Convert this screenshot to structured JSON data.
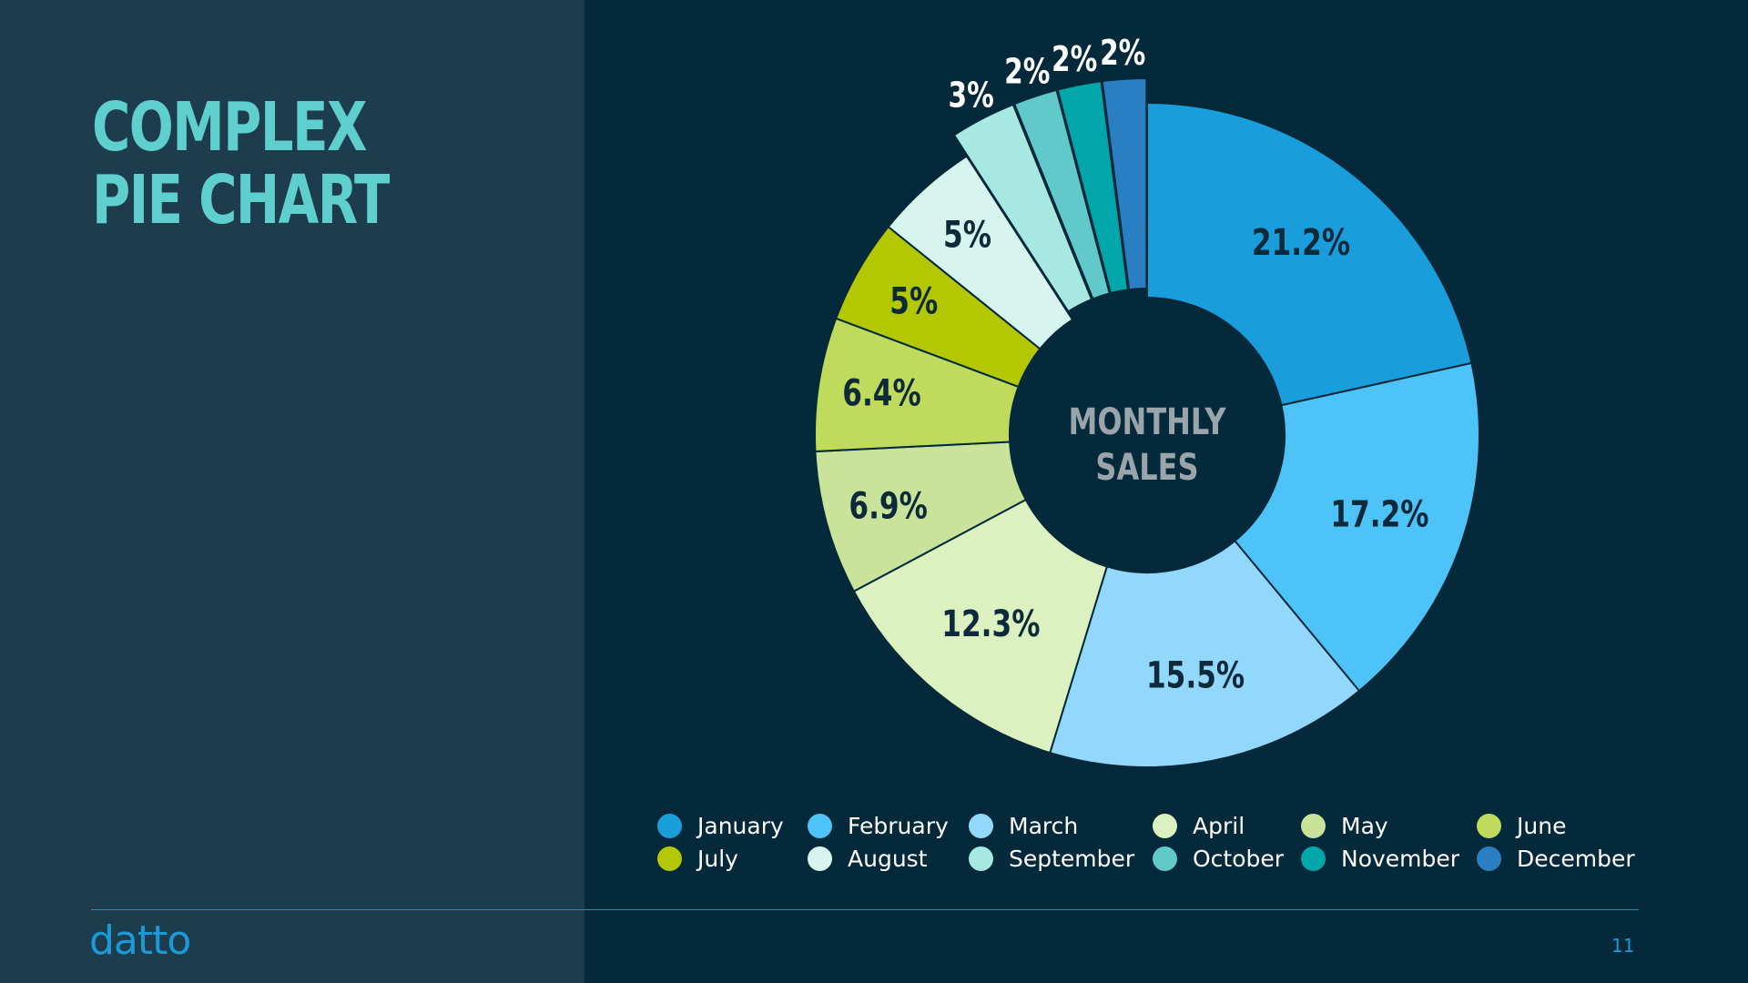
{
  "slide": {
    "title_line1": "COMPLEX",
    "title_line2": "PIE CHART",
    "logo_text": "datto",
    "page_number": "11"
  },
  "colors": {
    "background": "#03293b",
    "left_panel": "#1d3d4f",
    "title": "#5fcfce",
    "center_text": "#9aa5ab",
    "dark_label": "#0d2a3a",
    "light_label": "#ffffff",
    "accent": "#1a9bd7"
  },
  "chart_data": {
    "type": "pie",
    "title": "",
    "center_label_line1": "MONTHLY",
    "center_label_line2": "SALES",
    "legend_position": "bottom",
    "slices": [
      {
        "name": "January",
        "value": 21.2,
        "label": "21.2%",
        "color": "#1a9edb"
      },
      {
        "name": "February",
        "value": 17.2,
        "label": "17.2%",
        "color": "#4dc3f8"
      },
      {
        "name": "March",
        "value": 15.5,
        "label": "15.5%",
        "color": "#92d8fc"
      },
      {
        "name": "April",
        "value": 12.3,
        "label": "12.3%",
        "color": "#dbf2c0"
      },
      {
        "name": "May",
        "value": 6.9,
        "label": "6.9%",
        "color": "#c9e39a"
      },
      {
        "name": "June",
        "value": 6.4,
        "label": "6.4%",
        "color": "#c0da5c"
      },
      {
        "name": "July",
        "value": 5,
        "label": "5%",
        "color": "#b3c702"
      },
      {
        "name": "August",
        "value": 5,
        "label": "5%",
        "color": "#d8f4ee"
      },
      {
        "name": "September",
        "value": 3,
        "label": "3%",
        "color": "#a7e9e2"
      },
      {
        "name": "October",
        "value": 2,
        "label": "2%",
        "color": "#62c9cb"
      },
      {
        "name": "November",
        "value": 2,
        "label": "2%",
        "color": "#00a6a9"
      },
      {
        "name": "December",
        "value": 2,
        "label": "2%",
        "color": "#2a7fc2"
      }
    ]
  }
}
